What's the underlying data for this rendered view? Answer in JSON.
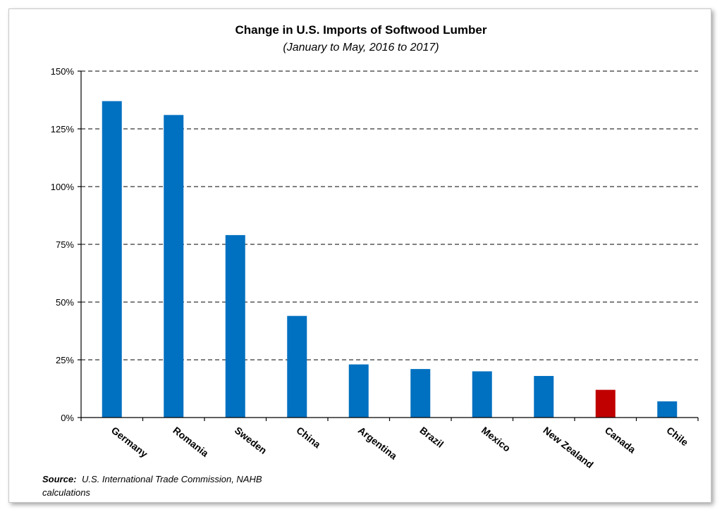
{
  "chart_data": {
    "type": "bar",
    "title": "Change in U.S. Imports of Softwood Lumber",
    "subtitle": "(January to May, 2016 to 2017)",
    "categories": [
      "Germany",
      "Romania",
      "Sweden",
      "China",
      "Argentina",
      "Brazil",
      "Mexico",
      "New Zealand",
      "Canada",
      "Chile"
    ],
    "values": [
      137,
      131,
      79,
      44,
      23,
      21,
      20,
      18,
      12,
      7
    ],
    "ylim": [
      0,
      150
    ],
    "yticks": [
      0,
      25,
      50,
      75,
      100,
      125,
      150
    ],
    "ytick_labels": [
      "0%",
      "25%",
      "50%",
      "75%",
      "100%",
      "125%",
      "150%"
    ],
    "xlabel": "",
    "ylabel": "",
    "grid": true,
    "colors": {
      "default": "#0070C0",
      "highlight": "#C00000"
    },
    "highlight_category": "Canada"
  },
  "source": {
    "label": "Source:",
    "text": "U.S. International Trade Commission, NAHB",
    "text_line2": "calculations"
  }
}
